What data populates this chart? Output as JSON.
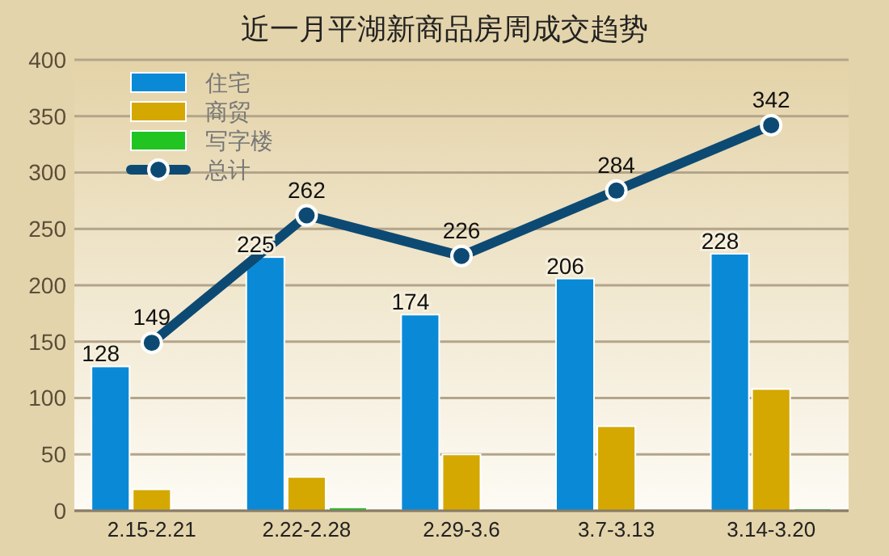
{
  "chart_data": {
    "type": "bar",
    "title": "近一月平湖新商品房周成交趋势",
    "categories": [
      "2.15-2.21",
      "2.22-2.28",
      "2.29-3.6",
      "3.7-3.13",
      "3.14-3.20"
    ],
    "series": [
      {
        "name": "住宅",
        "color": "#0a8ad6",
        "values": [
          128,
          225,
          174,
          206,
          228
        ],
        "value_labels": [
          "128",
          "225",
          "174",
          "206",
          "228"
        ]
      },
      {
        "name": "商贸",
        "color": "#d4a800",
        "values": [
          19,
          30,
          50,
          75,
          108
        ]
      },
      {
        "name": "写字楼",
        "color": "#22c422",
        "values": [
          0,
          3,
          0,
          0,
          2
        ]
      },
      {
        "name": "总计",
        "type": "line",
        "color": "#0d4a73",
        "values": [
          149,
          262,
          226,
          284,
          342
        ],
        "value_labels": [
          "149",
          "262",
          "226",
          "284",
          "342"
        ],
        "marker": "circle"
      }
    ],
    "ylim": [
      0,
      400
    ],
    "yticks": [
      0,
      50,
      100,
      150,
      200,
      250,
      300,
      350,
      400
    ],
    "grid": "y",
    "legend": "top left"
  }
}
